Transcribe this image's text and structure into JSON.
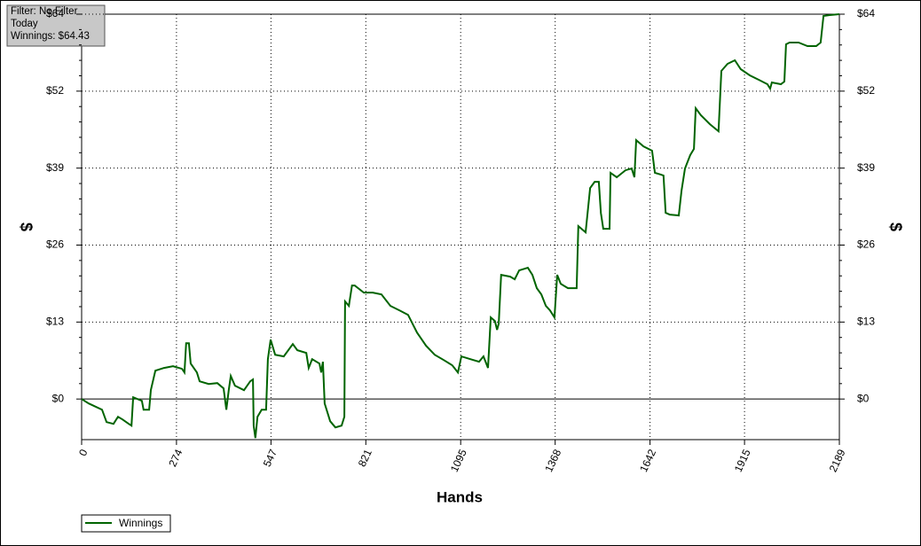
{
  "chart_data": {
    "type": "line",
    "annotations": [
      "Filter: No Filter",
      "Today",
      "Winnings: $64.43"
    ],
    "xlabel": "Hands",
    "ylabel": "$",
    "xlim": [
      0,
      2189
    ],
    "xticks": [
      0,
      274,
      547,
      821,
      1095,
      1368,
      1642,
      1915,
      2189
    ],
    "ylim": [
      -6.8,
      64.43
    ],
    "yticks": [
      {
        "value": 0,
        "label": "$0"
      },
      {
        "value": 12.886,
        "label": "$13"
      },
      {
        "value": 25.772,
        "label": "$26"
      },
      {
        "value": 38.658,
        "label": "$39"
      },
      {
        "value": 51.544,
        "label": "$52"
      },
      {
        "value": 64.43,
        "label": "$64"
      }
    ],
    "grid": true,
    "legend": "bottom-left",
    "series": [
      {
        "name": "Winnings",
        "color": "#006400",
        "x": [
          0,
          20.5,
          59,
          72,
          92,
          105,
          118,
          136,
          144,
          149,
          174,
          179,
          195,
          200,
          213,
          238,
          264,
          290,
          297,
          302,
          310,
          315,
          333,
          341,
          367,
          392,
          410,
          418,
          425,
          431,
          443,
          469,
          487,
          495,
          497,
          502,
          508,
          520,
          533,
          538,
          546,
          559,
          584,
          610,
          623,
          649,
          656,
          666,
          687,
          692,
          697,
          702,
          718,
          733,
          751,
          759,
          761,
          772,
          781,
          789,
          815,
          841,
          866,
          892,
          918,
          943,
          969,
          995,
          1020,
          1046,
          1071,
          1087,
          1097,
          1123,
          1148,
          1161,
          1174,
          1182,
          1194,
          1200,
          1205,
          1212,
          1238,
          1251,
          1264,
          1289,
          1302,
          1315,
          1328,
          1341,
          1353,
          1366,
          1374,
          1384,
          1392,
          1405,
          1430,
          1435,
          1456,
          1469,
          1482,
          1494,
          1500,
          1507,
          1525,
          1528,
          1546,
          1571,
          1589,
          1597,
          1602,
          1623,
          1648,
          1656,
          1674,
          1681,
          1687,
          1699,
          1725,
          1733,
          1743,
          1758,
          1769,
          1774,
          1789,
          1815,
          1840,
          1848,
          1866,
          1887,
          1904,
          1930,
          1956,
          1981,
          1989,
          1994,
          2020,
          2030,
          2035,
          2045,
          2071,
          2097,
          2122,
          2135,
          2143,
          2161,
          2189
        ],
        "values": [
          0,
          -0.74,
          -1.78,
          -3.86,
          -4.16,
          -2.97,
          -3.41,
          -4.16,
          -4.45,
          0.3,
          -0.3,
          -1.78,
          -1.78,
          1.48,
          4.75,
          5.2,
          5.49,
          5.05,
          4.45,
          9.35,
          9.35,
          5.94,
          4.45,
          2.97,
          2.52,
          2.67,
          1.78,
          -1.78,
          1.48,
          3.86,
          2.23,
          1.48,
          2.97,
          3.27,
          -4.45,
          -6.53,
          -2.97,
          -1.78,
          -1.78,
          6.68,
          9.95,
          7.42,
          7.13,
          9.2,
          8.17,
          7.72,
          5.2,
          6.68,
          5.94,
          4.45,
          6.24,
          -0.74,
          -3.71,
          -4.75,
          -4.45,
          -2.97,
          16.33,
          15.59,
          19.0,
          19.0,
          17.82,
          17.82,
          17.52,
          15.59,
          14.85,
          14.1,
          11.13,
          8.91,
          7.42,
          6.53,
          5.64,
          4.45,
          7.13,
          6.68,
          6.24,
          7.13,
          5.2,
          13.66,
          13.06,
          11.58,
          12.62,
          20.78,
          20.49,
          20.04,
          21.53,
          21.97,
          20.78,
          18.56,
          17.52,
          15.59,
          14.85,
          13.66,
          20.78,
          19.3,
          19.0,
          18.56,
          18.56,
          28.95,
          27.91,
          35.33,
          36.37,
          36.37,
          31.18,
          28.5,
          28.5,
          37.86,
          37.12,
          38.3,
          38.6,
          37.12,
          43.35,
          42.31,
          41.57,
          37.86,
          37.56,
          37.41,
          31.18,
          30.88,
          30.73,
          34.89,
          38.6,
          40.83,
          41.87,
          48.69,
          47.51,
          46.02,
          44.83,
          54.93,
          56.12,
          56.71,
          55.23,
          54.19,
          53.45,
          52.7,
          51.96,
          53.0,
          52.7,
          53.15,
          59.38,
          59.68,
          59.68,
          59.09,
          59.09,
          59.68,
          64.13,
          64.28,
          64.43
        ]
      }
    ]
  }
}
